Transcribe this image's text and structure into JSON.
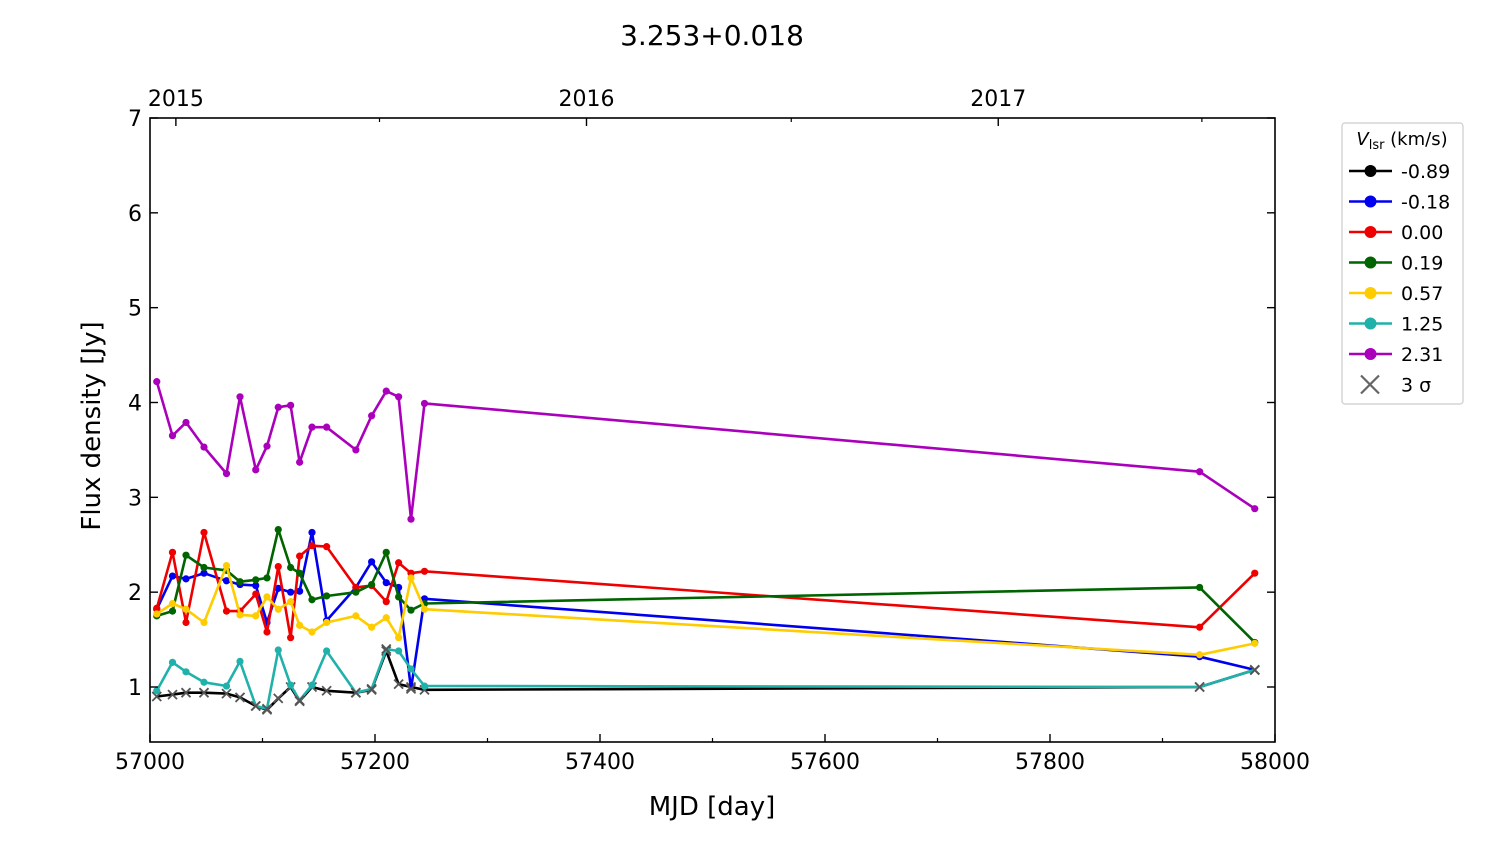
{
  "chart_data": {
    "type": "line",
    "title": "3.253+0.018",
    "xlabel": "MJD [day]",
    "ylabel": "Flux density [Jy]",
    "xlim": [
      57000,
      58000
    ],
    "ylim": [
      0.42,
      7
    ],
    "x_ticks": [
      57000,
      57200,
      57400,
      57600,
      57800,
      58000
    ],
    "y_ticks": [
      1,
      2,
      3,
      4,
      5,
      6,
      7
    ],
    "top_axis": {
      "labels": [
        {
          "text": "2015",
          "mjd": 57023
        },
        {
          "text": "2016",
          "mjd": 57388
        },
        {
          "text": "2017",
          "mjd": 57754
        }
      ]
    },
    "legend": {
      "title_main": "V",
      "title_sub": "lsr",
      "title_rest": " (km/s)",
      "sigma_label": "3 σ",
      "placement": "outside-right-top"
    },
    "series": [
      {
        "name": "-0.89",
        "color": "#000000",
        "x": [
          57006,
          57020,
          57032,
          57048,
          57068,
          57080,
          57094,
          57104,
          57114,
          57125,
          57133,
          57144,
          57157,
          57183,
          57197,
          57210,
          57221,
          57232,
          57244,
          57933,
          57982
        ],
        "y": [
          0.9,
          0.92,
          0.94,
          0.94,
          0.93,
          0.89,
          0.8,
          0.76,
          0.88,
          1.0,
          0.85,
          1.0,
          0.96,
          0.94,
          0.97,
          1.38,
          1.03,
          1.0,
          0.97,
          1.0,
          1.18
        ],
        "upper": [
          true,
          true,
          true,
          true,
          true,
          true,
          true,
          true,
          true,
          true,
          true,
          true,
          true,
          true,
          true,
          true,
          true,
          true,
          true,
          true,
          true
        ]
      },
      {
        "name": "-0.18",
        "color": "#0000ee",
        "x": [
          57006,
          57020,
          57032,
          57048,
          57068,
          57080,
          57094,
          57104,
          57114,
          57125,
          57133,
          57144,
          57157,
          57183,
          57197,
          57210,
          57221,
          57232,
          57244,
          57933,
          57982
        ],
        "y": [
          1.82,
          2.17,
          2.14,
          2.2,
          2.12,
          2.08,
          2.07,
          1.68,
          2.04,
          2.0,
          2.01,
          2.63,
          1.7,
          2.05,
          2.32,
          2.1,
          2.05,
          0.98,
          1.93,
          1.32,
          1.18
        ],
        "upper": [
          false,
          false,
          false,
          false,
          false,
          false,
          false,
          false,
          false,
          false,
          false,
          false,
          false,
          false,
          false,
          false,
          false,
          true,
          false,
          false,
          true
        ]
      },
      {
        "name": "0.00",
        "color": "#ee0000",
        "x": [
          57006,
          57020,
          57032,
          57048,
          57068,
          57080,
          57094,
          57104,
          57114,
          57125,
          57133,
          57144,
          57157,
          57183,
          57197,
          57210,
          57221,
          57232,
          57244,
          57933,
          57982
        ],
        "y": [
          1.83,
          2.42,
          1.68,
          2.63,
          1.8,
          1.8,
          1.98,
          1.58,
          2.27,
          1.52,
          2.38,
          2.49,
          2.48,
          2.05,
          2.07,
          1.9,
          2.31,
          2.2,
          2.22,
          1.63,
          2.2
        ],
        "upper": [
          false,
          false,
          false,
          false,
          false,
          false,
          false,
          false,
          false,
          false,
          false,
          false,
          false,
          false,
          false,
          false,
          false,
          false,
          false,
          false,
          false
        ]
      },
      {
        "name": "0.19",
        "color": "#006400",
        "x": [
          57006,
          57020,
          57032,
          57048,
          57068,
          57080,
          57094,
          57104,
          57114,
          57125,
          57133,
          57144,
          57157,
          57183,
          57197,
          57210,
          57221,
          57232,
          57244,
          57933,
          57982
        ],
        "y": [
          1.75,
          1.8,
          2.39,
          2.26,
          2.23,
          2.11,
          2.13,
          2.15,
          2.66,
          2.26,
          2.2,
          1.92,
          1.96,
          2.0,
          2.08,
          2.42,
          1.95,
          1.81,
          1.88,
          2.05,
          1.47
        ],
        "upper": [
          false,
          false,
          false,
          false,
          false,
          false,
          false,
          false,
          false,
          false,
          false,
          false,
          false,
          false,
          false,
          false,
          false,
          false,
          false,
          false,
          false
        ]
      },
      {
        "name": "0.57",
        "color": "#ffcc00",
        "x": [
          57006,
          57020,
          57032,
          57048,
          57068,
          57080,
          57094,
          57104,
          57114,
          57125,
          57133,
          57144,
          57157,
          57183,
          57197,
          57210,
          57221,
          57232,
          57244,
          57933,
          57982
        ],
        "y": [
          1.77,
          1.88,
          1.82,
          1.68,
          2.28,
          1.76,
          1.75,
          1.95,
          1.82,
          1.9,
          1.65,
          1.58,
          1.68,
          1.75,
          1.63,
          1.73,
          1.52,
          2.15,
          1.82,
          1.34,
          1.46
        ],
        "upper": [
          false,
          false,
          false,
          false,
          false,
          false,
          false,
          false,
          false,
          false,
          false,
          false,
          false,
          false,
          false,
          false,
          false,
          false,
          false,
          false,
          false
        ]
      },
      {
        "name": "1.25",
        "color": "#20b2aa",
        "x": [
          57006,
          57020,
          57032,
          57048,
          57068,
          57080,
          57094,
          57104,
          57114,
          57125,
          57133,
          57144,
          57157,
          57183,
          57197,
          57210,
          57221,
          57232,
          57244,
          57933,
          57982
        ],
        "y": [
          0.96,
          1.26,
          1.16,
          1.05,
          1.01,
          1.27,
          0.8,
          0.77,
          1.39,
          1.02,
          0.86,
          1.02,
          1.38,
          0.94,
          0.98,
          1.4,
          1.38,
          1.19,
          1.01,
          1.0,
          1.18
        ],
        "upper": [
          false,
          false,
          false,
          false,
          false,
          false,
          true,
          true,
          false,
          false,
          true,
          false,
          false,
          true,
          true,
          true,
          false,
          false,
          false,
          true,
          true
        ]
      },
      {
        "name": "2.31",
        "color": "#aa00bb",
        "x": [
          57006,
          57020,
          57032,
          57048,
          57068,
          57080,
          57094,
          57104,
          57114,
          57125,
          57133,
          57144,
          57157,
          57183,
          57197,
          57210,
          57221,
          57232,
          57244,
          57933,
          57982
        ],
        "y": [
          4.22,
          3.65,
          3.79,
          3.53,
          3.25,
          4.06,
          3.29,
          3.54,
          3.95,
          3.97,
          3.37,
          3.74,
          3.74,
          3.5,
          3.86,
          4.12,
          4.06,
          2.77,
          3.99,
          3.27,
          2.88
        ],
        "upper": [
          false,
          false,
          false,
          false,
          false,
          false,
          false,
          false,
          false,
          false,
          false,
          false,
          false,
          false,
          false,
          false,
          false,
          false,
          false,
          false,
          false
        ]
      }
    ]
  }
}
